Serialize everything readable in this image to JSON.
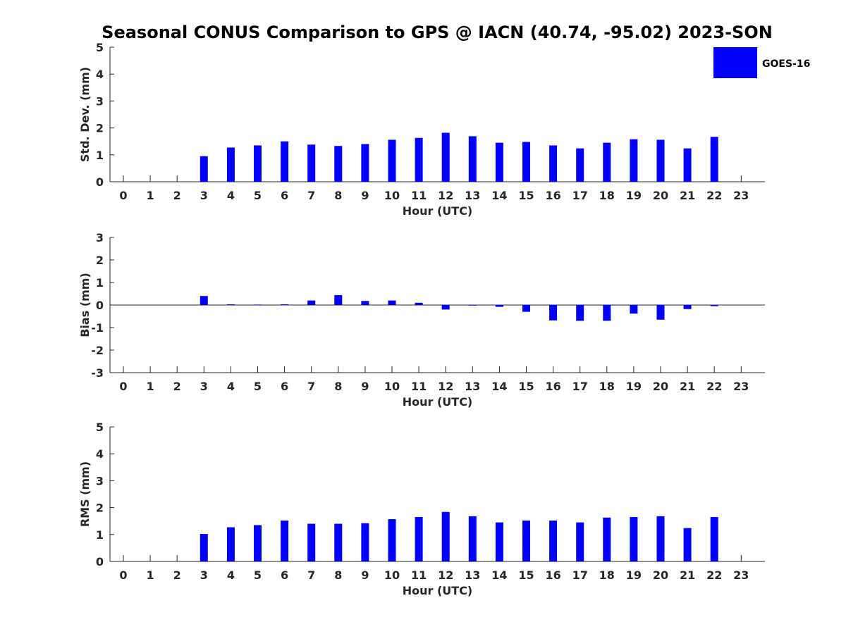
{
  "title": "Seasonal CONUS Comparison to GPS @ IACN (40.74, -95.02) 2023-SON",
  "legend": {
    "label": "GOES-16",
    "color": "#0000ff",
    "placement": "top-right"
  },
  "chart_data": [
    {
      "type": "bar",
      "title": "",
      "xlabel": "Hour (UTC)",
      "ylabel": "Std. Dev. (mm)",
      "ylim": [
        0,
        5
      ],
      "yticks": [
        0,
        1,
        2,
        3,
        4,
        5
      ],
      "categories": [
        "0",
        "1",
        "2",
        "3",
        "4",
        "5",
        "6",
        "7",
        "8",
        "9",
        "10",
        "11",
        "12",
        "13",
        "14",
        "15",
        "16",
        "17",
        "18",
        "19",
        "20",
        "21",
        "22",
        "23"
      ],
      "series": [
        {
          "name": "GOES-16",
          "color": "#0000ff",
          "values": [
            null,
            null,
            null,
            0.95,
            1.27,
            1.35,
            1.5,
            1.38,
            1.33,
            1.4,
            1.56,
            1.63,
            1.82,
            1.69,
            1.45,
            1.48,
            1.35,
            1.24,
            1.45,
            1.58,
            1.56,
            1.24,
            1.67,
            null
          ]
        }
      ]
    },
    {
      "type": "bar",
      "title": "",
      "xlabel": "Hour (UTC)",
      "ylabel": "Bias (mm)",
      "ylim": [
        -3,
        3
      ],
      "yticks": [
        -3,
        -2,
        -1,
        0,
        1,
        2,
        3
      ],
      "categories": [
        "0",
        "1",
        "2",
        "3",
        "4",
        "5",
        "6",
        "7",
        "8",
        "9",
        "10",
        "11",
        "12",
        "13",
        "14",
        "15",
        "16",
        "17",
        "18",
        "19",
        "20",
        "21",
        "22",
        "23"
      ],
      "series": [
        {
          "name": "GOES-16",
          "color": "#0000ff",
          "values": [
            null,
            null,
            null,
            0.4,
            0.03,
            0.02,
            0.03,
            0.2,
            0.44,
            0.18,
            0.2,
            0.1,
            -0.2,
            0.0,
            -0.08,
            -0.3,
            -0.68,
            -0.7,
            -0.7,
            -0.38,
            -0.65,
            -0.18,
            -0.05,
            null
          ]
        }
      ]
    },
    {
      "type": "bar",
      "title": "",
      "xlabel": "Hour (UTC)",
      "ylabel": "RMS (mm)",
      "ylim": [
        0,
        5
      ],
      "yticks": [
        0,
        1,
        2,
        3,
        4,
        5
      ],
      "categories": [
        "0",
        "1",
        "2",
        "3",
        "4",
        "5",
        "6",
        "7",
        "8",
        "9",
        "10",
        "11",
        "12",
        "13",
        "14",
        "15",
        "16",
        "17",
        "18",
        "19",
        "20",
        "21",
        "22",
        "23"
      ],
      "series": [
        {
          "name": "GOES-16",
          "color": "#0000ff",
          "values": [
            null,
            null,
            null,
            1.02,
            1.27,
            1.35,
            1.52,
            1.4,
            1.4,
            1.42,
            1.57,
            1.65,
            1.84,
            1.68,
            1.45,
            1.52,
            1.52,
            1.45,
            1.63,
            1.65,
            1.68,
            1.24,
            1.65,
            null
          ]
        }
      ]
    }
  ]
}
